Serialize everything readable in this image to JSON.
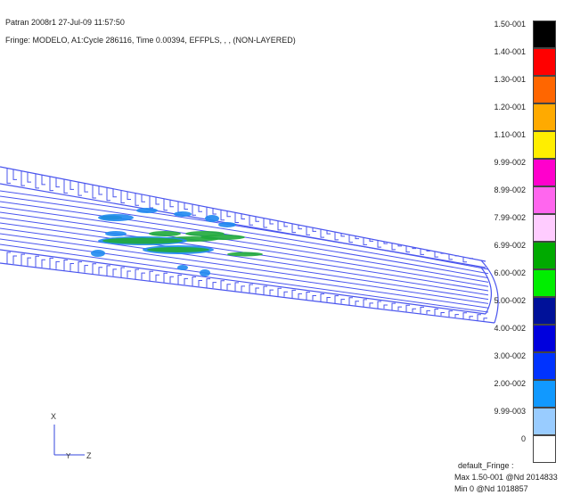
{
  "header": {
    "line1": "Patran 2008r1 27-Jul-09 11:57:50",
    "line2": "Fringe: MODELO, A1:Cycle 286116, Time 0.00394, EFFPLS, , , (NON-LAYERED)"
  },
  "legend": {
    "labels": [
      "1.50-001",
      "1.40-001",
      "1.30-001",
      "1.20-001",
      "1.10-001",
      "9.99-002",
      "8.99-002",
      "7.99-002",
      "6.99-002",
      "6.00-002",
      "5.00-002",
      "4.00-002",
      "3.00-002",
      "2.00-002",
      "9.99-003",
      "0"
    ],
    "colors": [
      "#000000",
      "#ff0000",
      "#ff6600",
      "#ffaa00",
      "#ffee00",
      "#ff00cc",
      "#ff66ee",
      "#ffccff",
      "#00aa00",
      "#00ee00",
      "#001199",
      "#0000dd",
      "#0033ff",
      "#1199ff",
      "#99ccff",
      "#ffffff"
    ]
  },
  "axes": {
    "x_label": "X",
    "y_label": "Y",
    "z_label": "Z"
  },
  "footer": {
    "title": "default_Fringe :",
    "max": "Max 1.50-001 @Nd 2014833",
    "min": "Min  0  @Nd 1018857"
  },
  "colors": {
    "mesh": "#4a55ee",
    "fringe_green": "#1faa3a",
    "fringe_blue": "#1f8af0"
  }
}
